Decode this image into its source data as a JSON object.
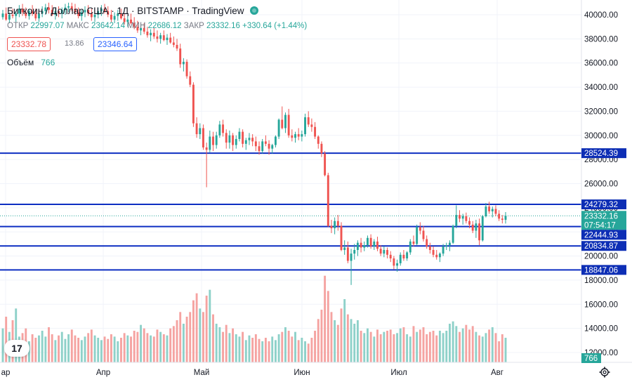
{
  "header": {
    "title": "Биткоин / Доллар США · 1Д · BITSTAMP · TradingView",
    "open_label": "ОТКР",
    "open": "22997.07",
    "high_label": "МАКС",
    "high": "23642.14",
    "low_label": "МИН",
    "low": "22686.12",
    "close_label": "ЗАКР",
    "close": "23332.16",
    "change": "+330.64 (+1.44%)",
    "bid": "23332.78",
    "spread": "13.86",
    "ask": "23346.64",
    "volume_label": "Объём",
    "volume_value": "766",
    "status_icon": "live-dot-icon"
  },
  "logo_text": "17",
  "colors": {
    "up": "#26a69a",
    "down": "#ef5350",
    "line": "#0d2ec2",
    "label_bg": "#0d2eb5",
    "vol_up": "#8ed1c9",
    "vol_down": "#f5a3a1",
    "grid": "#f0f3fa",
    "axis_text": "#131722"
  },
  "chart_data": {
    "type": "candlestick",
    "title": "Биткоин / Доллар США, 1Д, BITSTAMP",
    "ylim": [
      11600,
      41000
    ],
    "y_ticks": [
      "40000.00",
      "38000.00",
      "36000.00",
      "34000.00",
      "32000.00",
      "30000.00",
      "28000.00",
      "26000.00",
      "24000.00",
      "22000.00",
      "20000.00",
      "18000.00",
      "16000.00",
      "14000.00",
      "12000.00"
    ],
    "x_ticks": [
      "ар",
      "Апр",
      "Май",
      "Июн",
      "Июл",
      "Авг"
    ],
    "grid": true,
    "horizontal_levels": [
      "28524.39",
      "24279.32",
      "22444.93",
      "20834.87",
      "18847.06"
    ],
    "price_labels": [
      {
        "value": "28524.39",
        "kind": "level"
      },
      {
        "value": "24279.32",
        "kind": "level"
      },
      {
        "value": "23332.16",
        "kind": "last"
      },
      {
        "value": "07:54:17",
        "kind": "countdown"
      },
      {
        "value": "22444.93",
        "kind": "level"
      },
      {
        "value": "20834.87",
        "kind": "level"
      },
      {
        "value": "18847.06",
        "kind": "level"
      }
    ],
    "current_volume": "766",
    "candles": [
      [
        39800,
        40400,
        39600,
        40100,
        0
      ],
      [
        40100,
        40600,
        39500,
        39600,
        0
      ],
      [
        39600,
        40200,
        39300,
        40000,
        0
      ],
      [
        40000,
        40500,
        39700,
        39900,
        0
      ],
      [
        39900,
        40300,
        39400,
        40100,
        0
      ],
      [
        40100,
        40800,
        39800,
        40500,
        0
      ],
      [
        40500,
        40900,
        39900,
        40200,
        0
      ],
      [
        40200,
        40600,
        39700,
        39900,
        0
      ],
      [
        39900,
        40500,
        39600,
        40300,
        0
      ],
      [
        40300,
        40800,
        39900,
        40100,
        0
      ],
      [
        40100,
        40500,
        39500,
        39700,
        0
      ],
      [
        39700,
        40300,
        39400,
        40100,
        0
      ],
      [
        40100,
        40700,
        39800,
        40300,
        0
      ],
      [
        40300,
        40900,
        40000,
        40600,
        0
      ],
      [
        40600,
        41000,
        40100,
        40400,
        0
      ],
      [
        40400,
        40800,
        39900,
        40000,
        0
      ],
      [
        40000,
        40500,
        39600,
        40300,
        0
      ],
      [
        40300,
        40700,
        39800,
        40100,
        0
      ],
      [
        40100,
        40600,
        39700,
        40400,
        0
      ],
      [
        40400,
        40900,
        40000,
        40600,
        0
      ],
      [
        40600,
        41000,
        40200,
        40700,
        0
      ],
      [
        40700,
        41000,
        40300,
        40500,
        0
      ],
      [
        40500,
        40900,
        40000,
        40200,
        0
      ],
      [
        40200,
        40600,
        39700,
        39900,
        0
      ],
      [
        39900,
        40400,
        39500,
        40200,
        0
      ],
      [
        40200,
        40700,
        39800,
        40400,
        0
      ],
      [
        40400,
        40800,
        39900,
        40100,
        0
      ],
      [
        40100,
        40500,
        39500,
        39800,
        0
      ],
      [
        39800,
        40300,
        39400,
        40000,
        0
      ],
      [
        40000,
        40600,
        39700,
        40300,
        0
      ],
      [
        40300,
        40800,
        39900,
        40500,
        0
      ],
      [
        40500,
        40900,
        40100,
        40300,
        0
      ],
      [
        40300,
        40700,
        39800,
        40000,
        0
      ],
      [
        40000,
        40400,
        39400,
        39600,
        0
      ],
      [
        39600,
        40200,
        39300,
        39900,
        0
      ],
      [
        39900,
        40400,
        39500,
        40100,
        0
      ],
      [
        40100,
        40500,
        39600,
        39700,
        0
      ],
      [
        39700,
        40100,
        39200,
        39400,
        0
      ],
      [
        39400,
        39900,
        39000,
        39600,
        0
      ],
      [
        39600,
        40100,
        39200,
        39300,
        0
      ],
      [
        39300,
        39800,
        38800,
        39000,
        0
      ],
      [
        39000,
        39500,
        38500,
        38700,
        0
      ],
      [
        38700,
        39200,
        38300,
        38900,
        0
      ],
      [
        38900,
        39300,
        38400,
        38600,
        0
      ],
      [
        38600,
        39000,
        38100,
        38300,
        0
      ],
      [
        38300,
        38800,
        37800,
        38500,
        0
      ],
      [
        38500,
        38900,
        38000,
        38200,
        0
      ],
      [
        38200,
        38700,
        37700,
        38000,
        0
      ],
      [
        38000,
        38500,
        37600,
        38300,
        0
      ],
      [
        38300,
        38700,
        37800,
        37900,
        0
      ],
      [
        37900,
        38400,
        37500,
        38100,
        0
      ],
      [
        38100,
        38500,
        37600,
        37700,
        0
      ],
      [
        37700,
        38200,
        37300,
        37500,
        0
      ],
      [
        37500,
        38000,
        37000,
        37200,
        0
      ],
      [
        37200,
        37600,
        35600,
        35900,
        0
      ],
      [
        35900,
        36400,
        35300,
        36100,
        0
      ],
      [
        36100,
        36300,
        34700,
        34900,
        0
      ],
      [
        34900,
        35300,
        34000,
        34200,
        0
      ],
      [
        34200,
        34400,
        30700,
        31000,
        0
      ],
      [
        31000,
        31500,
        29800,
        30100,
        0
      ],
      [
        30100,
        31000,
        29700,
        30600,
        0
      ],
      [
        30600,
        30900,
        28800,
        29000,
        0
      ],
      [
        29000,
        29400,
        25700,
        28800,
        0
      ],
      [
        28800,
        30400,
        28600,
        29900,
        0
      ],
      [
        29900,
        30300,
        28700,
        29200,
        0
      ],
      [
        29200,
        30300,
        28900,
        30000,
        0
      ],
      [
        30000,
        31200,
        29800,
        30900,
        0
      ],
      [
        30900,
        31300,
        29900,
        30200,
        0
      ],
      [
        30200,
        30500,
        28900,
        29400,
        0
      ],
      [
        29400,
        30400,
        28900,
        30000,
        0
      ],
      [
        30000,
        30200,
        28700,
        29200,
        0
      ],
      [
        29200,
        30000,
        28900,
        29700,
        0
      ],
      [
        29700,
        30600,
        29500,
        30300,
        0
      ],
      [
        30300,
        30500,
        29000,
        29300,
        0
      ],
      [
        29300,
        29800,
        28800,
        29600,
        0
      ],
      [
        29600,
        30200,
        29200,
        29800,
        0
      ],
      [
        29800,
        30100,
        29100,
        29500,
        0
      ],
      [
        29500,
        29900,
        28700,
        29100,
        0
      ],
      [
        29100,
        29500,
        28400,
        28700,
        0
      ],
      [
        28700,
        29700,
        28500,
        29500,
        0
      ],
      [
        29500,
        30000,
        29100,
        29300,
        0
      ],
      [
        29300,
        29600,
        28400,
        28900,
        0
      ],
      [
        28900,
        29300,
        28500,
        29200,
        0
      ],
      [
        29200,
        30000,
        29000,
        29900,
        0
      ],
      [
        29900,
        31400,
        29700,
        31300,
        0
      ],
      [
        31300,
        32400,
        30500,
        30600,
        0
      ],
      [
        30600,
        31900,
        30200,
        31700,
        0
      ],
      [
        31700,
        32200,
        29800,
        30000,
        0
      ],
      [
        30000,
        30500,
        29500,
        29800,
        0
      ],
      [
        29800,
        30300,
        29400,
        30100,
        0
      ],
      [
        30100,
        30600,
        29600,
        29900,
        0
      ],
      [
        29900,
        30400,
        29500,
        30100,
        0
      ],
      [
        30100,
        31800,
        29900,
        31500,
        0
      ],
      [
        31500,
        32000,
        30700,
        30900,
        0
      ],
      [
        30900,
        31400,
        30300,
        30700,
        0
      ],
      [
        30700,
        31100,
        29700,
        29900,
        0
      ],
      [
        29900,
        30000,
        28900,
        29300,
        0
      ],
      [
        29300,
        29500,
        28200,
        28500,
        0
      ],
      [
        28500,
        28700,
        26600,
        26700,
        0
      ],
      [
        26700,
        26900,
        22400,
        22500,
        0
      ],
      [
        22500,
        23000,
        21900,
        22300,
        0
      ],
      [
        22300,
        23200,
        21800,
        22900,
        0
      ],
      [
        22900,
        23400,
        22100,
        22500,
        0
      ],
      [
        22500,
        22800,
        20400,
        20500,
        0
      ],
      [
        20500,
        21300,
        20100,
        20700,
        0
      ],
      [
        20700,
        21200,
        19400,
        19600,
        0
      ],
      [
        19600,
        20600,
        17600,
        20200,
        0
      ],
      [
        20200,
        21000,
        19700,
        20500,
        0
      ],
      [
        20500,
        21300,
        20000,
        21100,
        0
      ],
      [
        21100,
        21500,
        20300,
        20700,
        0
      ],
      [
        20700,
        21200,
        20400,
        20900,
        0
      ],
      [
        20900,
        21700,
        20700,
        21500,
        0
      ],
      [
        21500,
        21800,
        20600,
        20800,
        0
      ],
      [
        20800,
        21400,
        20500,
        21200,
        0
      ],
      [
        21200,
        21600,
        20400,
        20600,
        0
      ],
      [
        20600,
        20900,
        20000,
        20200,
        0
      ],
      [
        20200,
        20800,
        19900,
        20500,
        0
      ],
      [
        20500,
        20700,
        19800,
        20100,
        0
      ],
      [
        20100,
        20400,
        19500,
        19800,
        0
      ],
      [
        19800,
        20000,
        18900,
        19200,
        0
      ],
      [
        19200,
        19700,
        18700,
        19400,
        0
      ],
      [
        19400,
        20300,
        19200,
        20100,
        0
      ],
      [
        20100,
        20500,
        19600,
        19800,
        0
      ],
      [
        19800,
        20400,
        19600,
        20300,
        0
      ],
      [
        20300,
        21400,
        20100,
        21200,
        0
      ],
      [
        21200,
        21700,
        20800,
        21000,
        0
      ],
      [
        21000,
        22600,
        20900,
        22400,
        0
      ],
      [
        22400,
        22800,
        21800,
        22100,
        0
      ],
      [
        22100,
        22500,
        21200,
        21400,
        0
      ],
      [
        21400,
        21700,
        20600,
        20800,
        0
      ],
      [
        20800,
        21100,
        20200,
        20500,
        0
      ],
      [
        20500,
        20800,
        19900,
        20100,
        0
      ],
      [
        20100,
        20500,
        19700,
        19900,
        0
      ],
      [
        19900,
        20300,
        19500,
        20200,
        0
      ],
      [
        20200,
        21000,
        20000,
        20800,
        0
      ],
      [
        20800,
        21100,
        20500,
        20900,
        0
      ],
      [
        20900,
        21300,
        20400,
        21100,
        0
      ],
      [
        21100,
        22600,
        21000,
        22500,
        0
      ],
      [
        22500,
        24200,
        22300,
        23400,
        0
      ],
      [
        23400,
        23800,
        22800,
        23100,
        0
      ],
      [
        23100,
        23500,
        22600,
        23300,
        0
      ],
      [
        23300,
        23600,
        22700,
        22900,
        0
      ],
      [
        22900,
        23200,
        22300,
        22600,
        0
      ],
      [
        22600,
        22900,
        21900,
        22100,
        0
      ],
      [
        22100,
        23000,
        21500,
        22700,
        0
      ],
      [
        22700,
        23100,
        20900,
        21300,
        0
      ],
      [
        21300,
        23400,
        21200,
        23300,
        0
      ],
      [
        23300,
        24400,
        23200,
        24100,
        0
      ],
      [
        24100,
        24500,
        23500,
        23700,
        0
      ],
      [
        23700,
        24100,
        23200,
        23900,
        0
      ],
      [
        23900,
        24200,
        23300,
        23500,
        0
      ],
      [
        23500,
        23800,
        22900,
        23100,
        0
      ],
      [
        23100,
        23400,
        22700,
        23000,
        0
      ],
      [
        23000,
        23642,
        22686,
        23332,
        1
      ]
    ],
    "volumes": [
      2900,
      3900,
      2600,
      3600,
      4600,
      2200,
      2500,
      2900,
      1800,
      2400,
      2100,
      2300,
      2700,
      2200,
      3000,
      2400,
      1900,
      2300,
      2600,
      2000,
      2400,
      2800,
      2300,
      2100,
      1900,
      2200,
      2500,
      2800,
      2300,
      2100,
      1900,
      2200,
      2000,
      2400,
      2200,
      1800,
      2100,
      2500,
      2300,
      2200,
      2700,
      2600,
      3200,
      2900,
      2500,
      2300,
      2200,
      2800,
      2600,
      2400,
      2300,
      2900,
      3100,
      3600,
      4300,
      3300,
      3900,
      4300,
      5300,
      5900,
      4600,
      4300,
      5700,
      6200,
      4100,
      3300,
      3000,
      2600,
      3200,
      2500,
      2900,
      2400,
      2200,
      2600,
      1900,
      2300,
      2100,
      2400,
      2000,
      1800,
      2100,
      1800,
      2200,
      1900,
      2400,
      2600,
      3000,
      2700,
      2200,
      2600,
      1900,
      2100,
      1800,
      1600,
      2100,
      2700,
      3700,
      4500,
      7400,
      6100,
      4300,
      3600,
      3200,
      4600,
      5400,
      4100,
      3700,
      3300,
      3600,
      2700,
      2500,
      2900,
      2600,
      2200,
      2800,
      2400,
      2600,
      2700,
      2800,
      2400,
      2500,
      2900,
      3000,
      2400,
      2200,
      3100,
      2600,
      2800,
      3000,
      2400,
      2600,
      2700,
      2300,
      2700,
      2500,
      2700,
      3300,
      3500,
      3100,
      2600,
      2900,
      3200,
      2800,
      3100,
      2600,
      2300,
      2200,
      2500,
      2800,
      3000,
      2500,
      1800,
      2400,
      2100,
      2200,
      2000,
      2300,
      1900,
      1400,
      1600,
      1700,
      1300,
      1100,
      900
    ],
    "volume_scale_max": 9000
  }
}
